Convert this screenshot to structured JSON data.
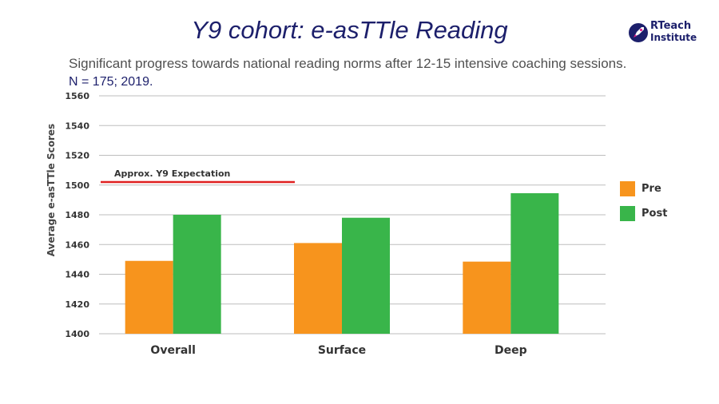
{
  "chart_data": {
    "type": "bar",
    "title": "Y9 cohort:  e-asTTle  Reading",
    "subtitle": "Significant progress towards national reading norms after 12-15 intensive coaching sessions.",
    "note": "N = 175; 2019.",
    "ylabel": "Average e-asTTle Scores",
    "xlabel": "",
    "ylim": [
      1400,
      1560
    ],
    "yticks": [
      "1400",
      "1420",
      "1440",
      "1460",
      "1480",
      "1500",
      "1520",
      "1540",
      "1560"
    ],
    "categories": [
      "Overall",
      "Surface",
      "Deep"
    ],
    "series": [
      {
        "name": "Pre",
        "color": "#f7941d",
        "values": [
          1449,
          1461,
          1448.5
        ]
      },
      {
        "name": "Post",
        "color": "#39b54a",
        "values": [
          1480,
          1478,
          1494.5
        ]
      }
    ],
    "reference_line": {
      "label": "Approx. Y9 Expectation",
      "value": 1502,
      "color": "#e02020"
    },
    "grid": true,
    "legend": "right"
  },
  "logo": {
    "line1": "RTeach",
    "line2": "Institute"
  }
}
